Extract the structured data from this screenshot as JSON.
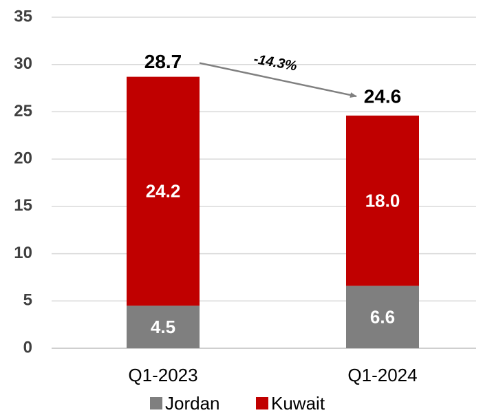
{
  "chart_data": {
    "type": "stacked_bar",
    "categories": [
      "Q1-2023",
      "Q1-2024"
    ],
    "series": [
      {
        "name": "Jordan",
        "color": "#7f7f7f",
        "values": [
          4.5,
          6.6
        ],
        "value_labels": [
          "4.5",
          "6.6"
        ]
      },
      {
        "name": "Kuwait",
        "color": "#c00000",
        "values": [
          24.2,
          18.0
        ],
        "value_labels": [
          "24.2",
          "18.0"
        ]
      }
    ],
    "totals": [
      28.7,
      24.6
    ],
    "annotation": "-14.3%",
    "ylim": [
      0,
      35
    ],
    "yticks": [
      0,
      5,
      10,
      15,
      20,
      25,
      30,
      35
    ],
    "grid": true,
    "legend": "bottom"
  }
}
